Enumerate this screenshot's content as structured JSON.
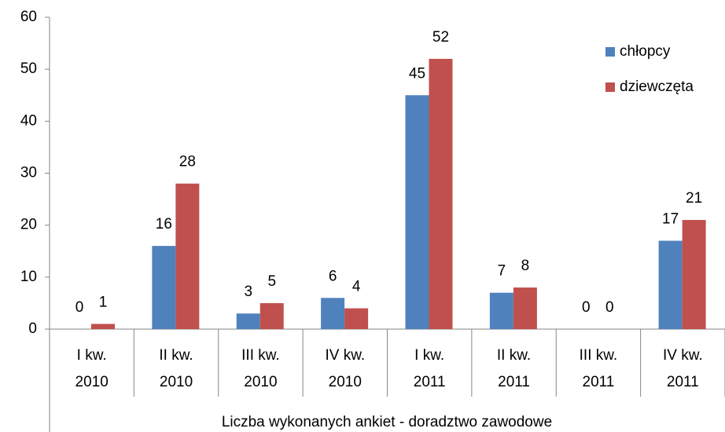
{
  "chart_data": {
    "type": "bar",
    "categories": [
      [
        "I kw.",
        "2010"
      ],
      [
        "II kw.",
        "2010"
      ],
      [
        "III kw.",
        "2010"
      ],
      [
        "IV kw.",
        "2010"
      ],
      [
        "I kw.",
        "2011"
      ],
      [
        "II kw.",
        "2011"
      ],
      [
        "III kw.",
        "2011"
      ],
      [
        "IV kw.",
        "2011"
      ]
    ],
    "series": [
      {
        "name": "chłopcy",
        "color": "#4f81bd",
        "values": [
          0,
          16,
          3,
          6,
          45,
          7,
          0,
          17
        ]
      },
      {
        "name": "dziewczęta",
        "color": "#c0504d",
        "values": [
          1,
          28,
          5,
          4,
          52,
          8,
          0,
          21
        ]
      }
    ],
    "x_label": "Liczba wykonanych ankiet - doradztwo zawodowe",
    "ylim": [
      0,
      60
    ],
    "yticks": [
      0,
      10,
      20,
      30,
      40,
      50,
      60
    ],
    "grid": false,
    "legend": "upper right"
  }
}
